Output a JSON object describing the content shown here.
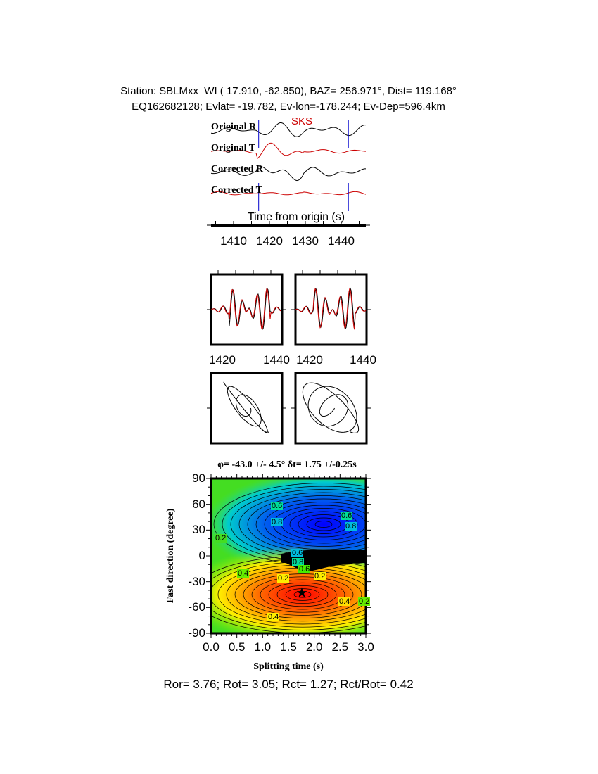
{
  "header": {
    "line1": "Station: SBLMxx_WI (  17.910,  -62.850), BAZ=  256.971°, Dist=  119.168°",
    "line2": "EQ162682128; Evlat= -19.782, Ev-lon=-178.244; Ev-Dep=596.4km"
  },
  "colors": {
    "radial": "#000000",
    "transverse": "#cc0000",
    "marker": "#0000cc"
  },
  "chart_data": [
    {
      "type": "line",
      "title": "",
      "phase_label": "SKS",
      "traces": [
        "Original R",
        "Original T",
        "Corrected R",
        "Corrected T"
      ],
      "xlabel": "Time from origin (s)",
      "xticks": [
        "1410",
        "1420",
        "1430",
        "1440"
      ],
      "xlim": [
        1404,
        1447
      ],
      "window_markers": [
        1417,
        1442
      ]
    },
    {
      "type": "line",
      "panel": "superposed waveforms",
      "xticks_left": [
        "1420",
        "1440"
      ],
      "xticks_right": [
        "1420",
        "1440"
      ]
    },
    {
      "type": "scatter",
      "panel": "particle motion"
    },
    {
      "type": "heatmap",
      "title": "φ= -43.0 +/- 4.5° δt= 1.75 +/-0.25s",
      "xlabel": "Splitting time (s)",
      "ylabel": "Fast direction (degree)",
      "xlim": [
        0,
        3
      ],
      "ylim": [
        -90,
        90
      ],
      "xticks": [
        "0.0",
        "0.5",
        "1.0",
        "1.5",
        "2.0",
        "2.5",
        "3.0"
      ],
      "yticks": [
        "90",
        "60",
        "30",
        "0",
        "-30",
        "-60",
        "-90"
      ],
      "contour_labels": [
        "0.6",
        "0.8",
        "0.6",
        "0.8",
        "0.6",
        "0.8",
        "0.6",
        "0.4",
        "0.2",
        "0.2",
        "0.4",
        "0.2",
        "0.4",
        "0.2"
      ],
      "best": {
        "dt": 1.75,
        "phi": -43.0
      },
      "colormap": [
        "#ff0000",
        "#ffff00",
        "#00ee00",
        "#00cccc",
        "#0000ff"
      ]
    }
  ],
  "footer": "Ror= 3.76; Rot= 3.05; Rct= 1.27; Rct/Rot= 0.42"
}
